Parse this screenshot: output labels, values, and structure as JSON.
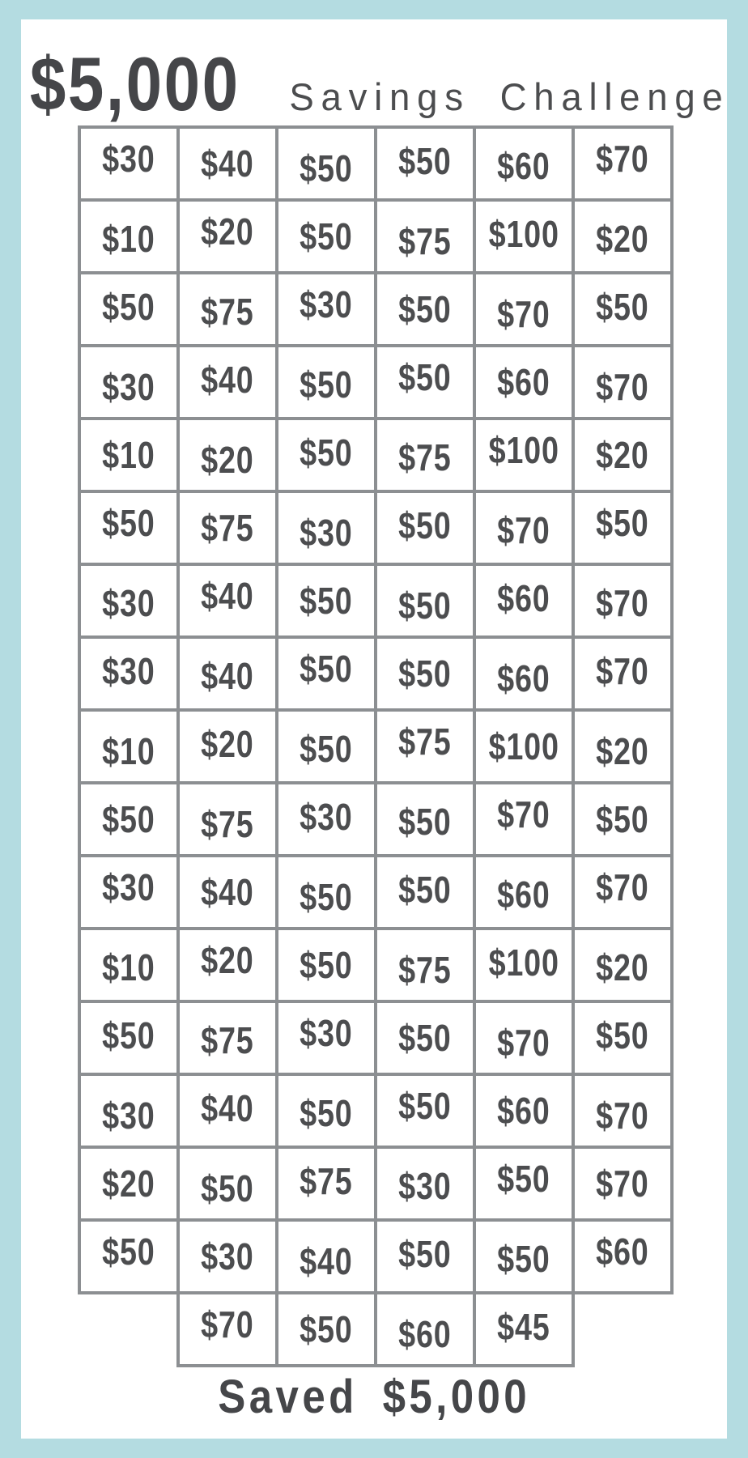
{
  "page_title": {
    "amount": "$5,000",
    "label": "Savings Challenge"
  },
  "grid": {
    "columns": 6,
    "rows": [
      [
        "$30",
        "$40",
        "$50",
        "$50",
        "$60",
        "$70"
      ],
      [
        "$10",
        "$20",
        "$50",
        "$75",
        "$100",
        "$20"
      ],
      [
        "$50",
        "$75",
        "$30",
        "$50",
        "$70",
        "$50"
      ],
      [
        "$30",
        "$40",
        "$50",
        "$50",
        "$60",
        "$70"
      ],
      [
        "$10",
        "$20",
        "$50",
        "$75",
        "$100",
        "$20"
      ],
      [
        "$50",
        "$75",
        "$30",
        "$50",
        "$70",
        "$50"
      ],
      [
        "$30",
        "$40",
        "$50",
        "$50",
        "$60",
        "$70"
      ],
      [
        "$30",
        "$40",
        "$50",
        "$50",
        "$60",
        "$70"
      ],
      [
        "$10",
        "$20",
        "$50",
        "$75",
        "$100",
        "$20"
      ],
      [
        "$50",
        "$75",
        "$30",
        "$50",
        "$70",
        "$50"
      ],
      [
        "$30",
        "$40",
        "$50",
        "$50",
        "$60",
        "$70"
      ],
      [
        "$10",
        "$20",
        "$50",
        "$75",
        "$100",
        "$20"
      ],
      [
        "$50",
        "$75",
        "$30",
        "$50",
        "$70",
        "$50"
      ],
      [
        "$30",
        "$40",
        "$50",
        "$50",
        "$60",
        "$70"
      ],
      [
        "$20",
        "$50",
        "$75",
        "$30",
        "$50",
        "$70"
      ],
      [
        "$50",
        "$30",
        "$40",
        "$50",
        "$50",
        "$60"
      ]
    ],
    "last_row": {
      "offset_columns": 1,
      "cells": [
        "$70",
        "$50",
        "$60",
        "$45"
      ]
    }
  },
  "footer": {
    "text": "Saved $5,000"
  },
  "colors": {
    "frame_blue": "#b4dce1",
    "grid_line_gray": "#8c8f92",
    "text_gray": "#4c4d4f"
  }
}
